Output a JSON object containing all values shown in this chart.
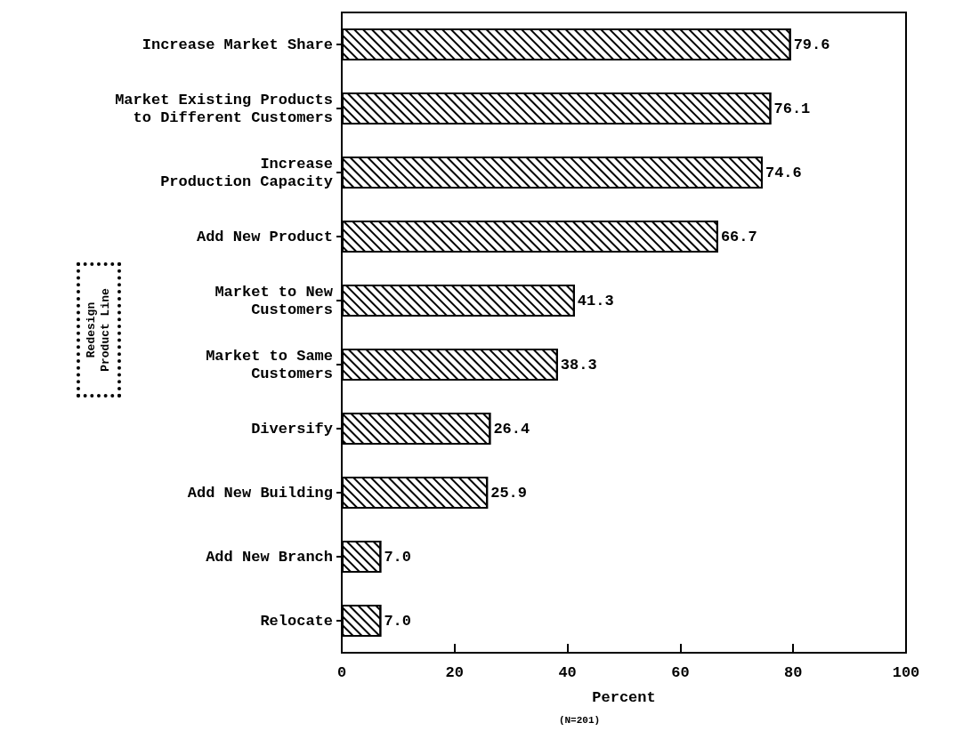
{
  "chart_data": {
    "type": "bar",
    "orientation": "horizontal",
    "categories": [
      "Increase Market Share",
      "Market Existing Products\nto Different Customers",
      "Increase\nProduction Capacity",
      "Add New Product",
      "Market to New\nCustomers",
      "Market to Same\nCustomers",
      "Diversify",
      "Add New Building",
      "Add New Branch",
      "Relocate"
    ],
    "values": [
      79.6,
      76.1,
      74.6,
      66.7,
      41.3,
      38.3,
      26.4,
      25.9,
      7.0,
      7.0
    ],
    "value_labels": [
      "79.6",
      "76.1",
      "74.6",
      "66.7",
      "41.3",
      "38.3",
      "26.4",
      "25.9",
      "7.0",
      "7.0"
    ],
    "color": "#000000",
    "xlabel": "Percent",
    "xlim": [
      0,
      100
    ],
    "xticks": [
      0,
      20,
      40,
      60,
      80,
      100
    ],
    "grid": false,
    "annotations": [
      "Redesign Product Line",
      "(N=201)"
    ]
  }
}
